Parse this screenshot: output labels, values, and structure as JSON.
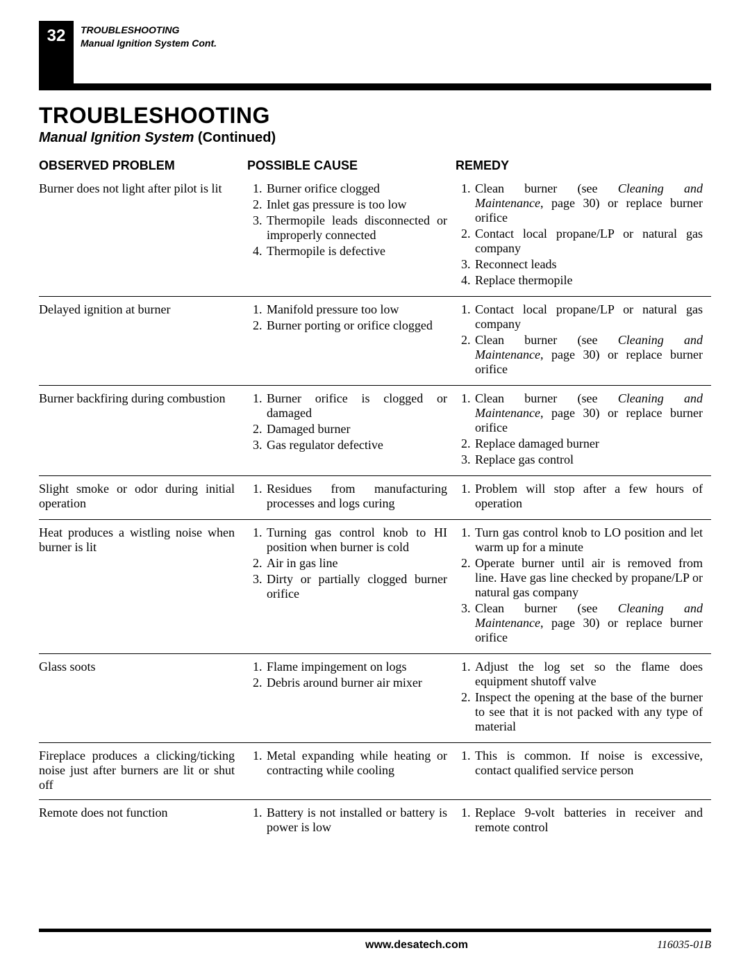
{
  "page_number": "32",
  "header_line1": "TROUBLESHOOTING",
  "header_line2": "Manual Ignition System Cont.",
  "section_title": "TROUBLESHOOTING",
  "section_sub_italic": "Manual Ignition System",
  "section_sub_rest": " (Continued)",
  "columns": {
    "c1": "OBSERVED PROBLEM",
    "c2": "POSSIBLE CAUSE",
    "c3": "REMEDY"
  },
  "rows": [
    {
      "problem": "Burner does not light after pilot is lit",
      "causes": [
        {
          "text": "Burner orifice clogged"
        },
        {
          "text": "Inlet gas pressure is too low"
        },
        {
          "text": "Thermopile leads disconnected or improperly connected"
        },
        {
          "text": "Thermopile is defective"
        }
      ],
      "remedies": [
        {
          "pre": "Clean burner (see ",
          "ital": "Cleaning and Maintenance",
          "post": ", page 30) or replace burner orifice"
        },
        {
          "text": "Contact local propane/LP or natural gas company"
        },
        {
          "text": "Reconnect leads"
        },
        {
          "text": "Replace thermopile"
        }
      ]
    },
    {
      "problem": "Delayed ignition at burner",
      "causes": [
        {
          "text": "Manifold pressure too low"
        },
        {
          "text": "Burner porting or orifice clogged"
        }
      ],
      "remedies": [
        {
          "text": "Contact local propane/LP or natural gas company"
        },
        {
          "pre": "Clean burner (see ",
          "ital": "Cleaning and Maintenance",
          "post": ", page 30) or replace burner orifice"
        }
      ]
    },
    {
      "problem": "Burner backfiring during combustion",
      "causes": [
        {
          "text": "Burner orifice is clogged or damaged"
        },
        {
          "text": "Damaged burner"
        },
        {
          "text": "Gas regulator defective"
        }
      ],
      "remedies": [
        {
          "pre": "Clean burner (see ",
          "ital": "Cleaning and Maintenance",
          "post": ", page 30) or replace burner orifice"
        },
        {
          "text": "Replace damaged burner"
        },
        {
          "text": "Replace gas control"
        }
      ]
    },
    {
      "problem": "Slight smoke or odor during initial operation",
      "causes": [
        {
          "text": "Residues from manufacturing processes and logs curing"
        }
      ],
      "remedies": [
        {
          "text": "Problem will stop after a few hours of operation"
        }
      ]
    },
    {
      "problem": "Heat produces a wistling noise when burner is lit",
      "causes": [
        {
          "text": "Turning gas control knob to HI position when burner is cold"
        },
        {
          "text": "Air in gas line"
        },
        {
          "text": "Dirty or partially clogged burner orifice"
        }
      ],
      "remedies": [
        {
          "text": "Turn gas control knob to LO position and let warm up for a minute"
        },
        {
          "text": "Operate burner until air is removed from line. Have gas line checked by propane/LP or natural gas company"
        },
        {
          "pre": "Clean burner (see ",
          "ital": "Cleaning and Maintenance",
          "post": ", page 30) or replace burner orifice"
        }
      ]
    },
    {
      "problem": "Glass soots",
      "causes": [
        {
          "text": "Flame impingement on logs"
        },
        {
          "text": "Debris around burner air mixer"
        }
      ],
      "remedies": [
        {
          "text": "Adjust the log set so the flame does equipment shutoff valve"
        },
        {
          "text": "Inspect the opening at the base of the burner to see that it is not packed with any type of material"
        }
      ]
    },
    {
      "problem": "Fireplace produces a clicking/ticking noise just after burners are lit or shut off",
      "causes": [
        {
          "text": "Metal expanding while heating or contracting while cooling"
        }
      ],
      "remedies": [
        {
          "text": "This is common. If noise is excessive, contact qualified service person"
        }
      ]
    },
    {
      "problem": "Remote does not function",
      "causes": [
        {
          "text": "Battery is not installed or battery is power is low"
        }
      ],
      "remedies": [
        {
          "text": "Replace 9-volt batteries in receiver and remote control"
        }
      ]
    }
  ],
  "footer_center": "www.desatech.com",
  "footer_right": "116035-01B"
}
